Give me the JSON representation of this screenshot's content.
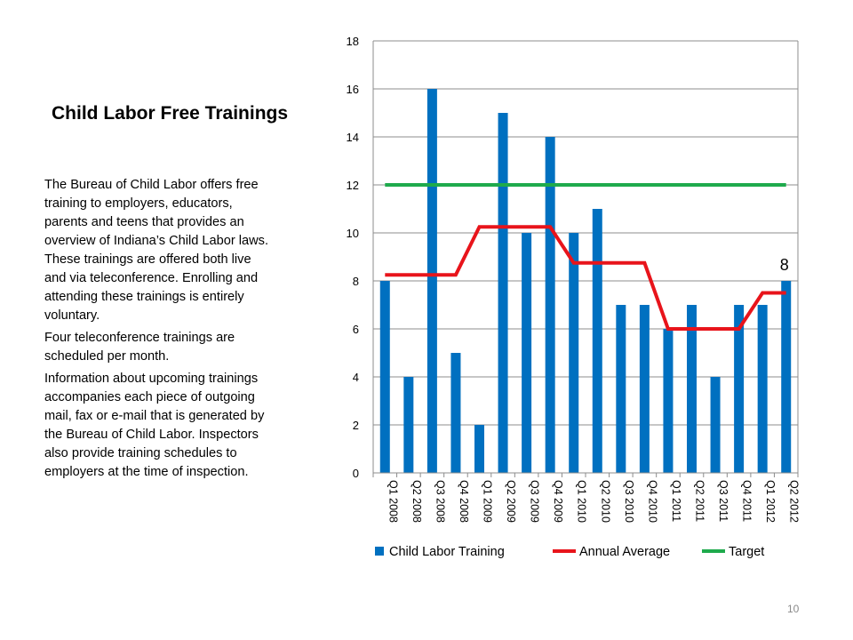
{
  "slide": {
    "title": "Child Labor Free Trainings",
    "paragraphs": [
      "The Bureau of Child Labor offers free training to employers, educators, parents and teens that provides an overview of Indiana’s Child Labor laws. These trainings are offered both live and via teleconference. Enrolling and attending these trainings is entirely voluntary.",
      "Four teleconference trainings are scheduled per month.",
      "Information about upcoming trainings accompanies each piece of outgoing mail, fax or e-mail that is generated by the Bureau of Child Labor. Inspectors also provide training schedules to employers at the time of inspection."
    ],
    "page_number": "10"
  },
  "chart_data": {
    "type": "bar",
    "categories": [
      "Q1 2008",
      "Q2 2008",
      "Q3 2008",
      "Q4 2008",
      "Q1 2009",
      "Q2 2009",
      "Q3 2009",
      "Q4 2009",
      "Q1 2010",
      "Q2 2010",
      "Q3 2010",
      "Q4 2010",
      "Q1 2011",
      "Q2 2011",
      "Q3 2011",
      "Q4 2011",
      "Q1 2012",
      "Q2 2012"
    ],
    "series": [
      {
        "name": "Child Labor Training",
        "type": "bar",
        "color": "#0070C0",
        "values": [
          8,
          4,
          16,
          5,
          2,
          15,
          10,
          14,
          10,
          11,
          7,
          7,
          6,
          7,
          4,
          7,
          7,
          8
        ]
      },
      {
        "name": "Annual Average",
        "type": "line",
        "color": "#E8141B",
        "values": [
          8.25,
          8.25,
          8.25,
          8.25,
          10.25,
          10.25,
          10.25,
          10.25,
          8.75,
          8.75,
          8.75,
          8.75,
          6,
          6,
          6,
          6,
          7.5,
          7.5
        ]
      },
      {
        "name": "Target",
        "type": "line",
        "color": "#1EAA4C",
        "values": [
          12,
          12,
          12,
          12,
          12,
          12,
          12,
          12,
          12,
          12,
          12,
          12,
          12,
          12,
          12,
          12,
          12,
          12
        ]
      }
    ],
    "ylim": [
      0,
      18
    ],
    "yticks": [
      0,
      2,
      4,
      6,
      8,
      10,
      12,
      14,
      16,
      18
    ],
    "grid": true,
    "legend_position": "bottom",
    "annotations": [
      {
        "category": "Q2 2012",
        "text": "8"
      }
    ]
  }
}
